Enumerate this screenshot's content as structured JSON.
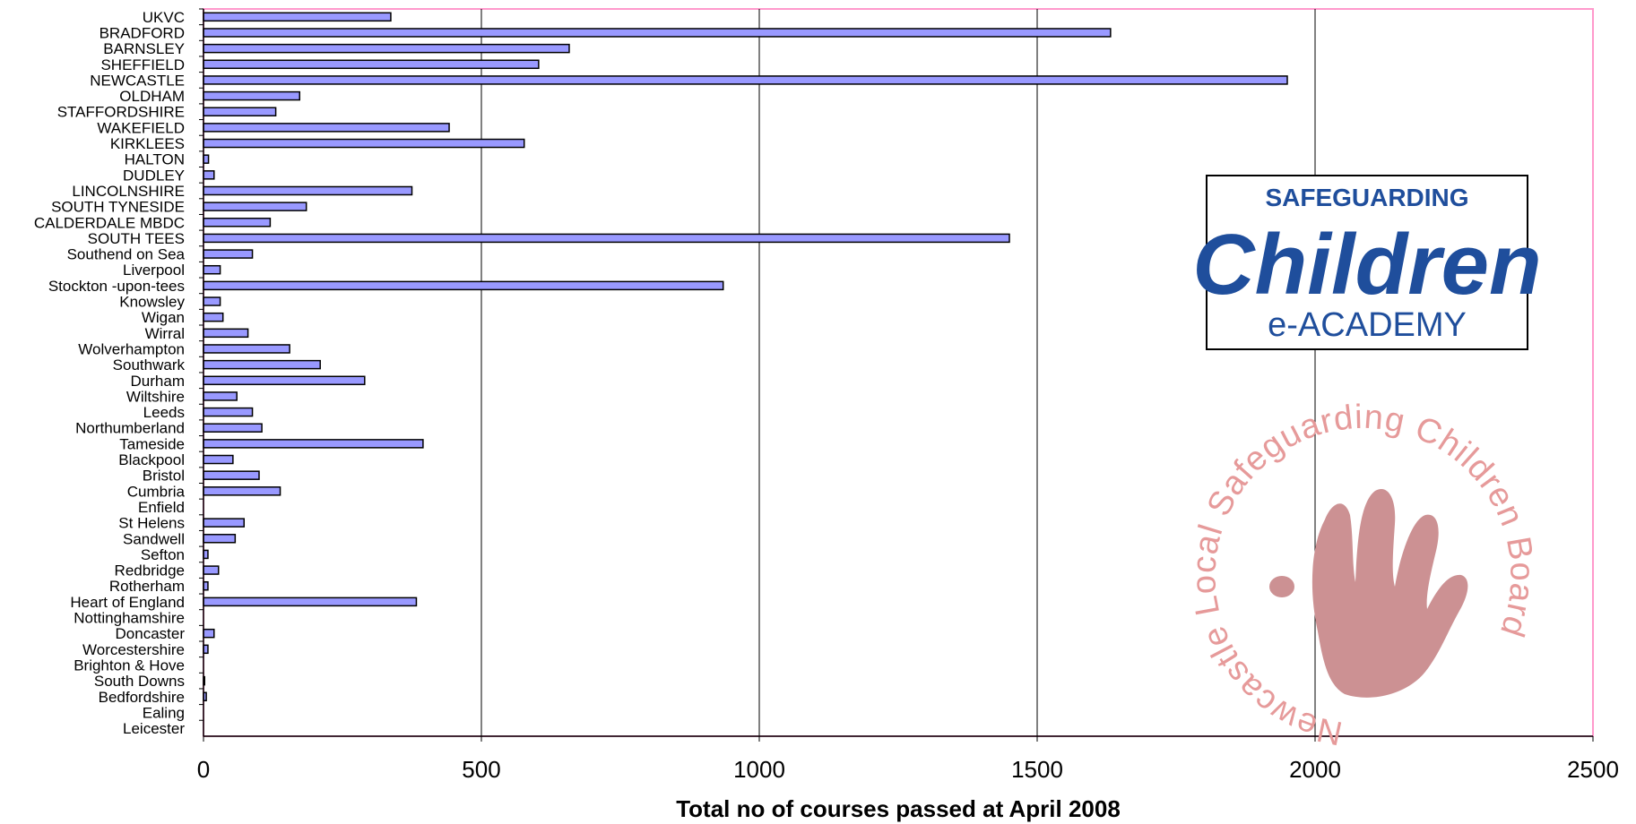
{
  "chart_data": {
    "type": "bar",
    "orientation": "horizontal",
    "categories": [
      "UKVC",
      "BRADFORD",
      "BARNSLEY",
      "SHEFFIELD",
      "NEWCASTLE",
      "OLDHAM",
      "STAFFORDSHIRE",
      "WAKEFIELD",
      "KIRKLEES",
      "HALTON",
      "DUDLEY",
      "LINCOLNSHIRE",
      "SOUTH TYNESIDE",
      "CALDERDALE MBDC",
      "SOUTH TEES",
      "Southend on Sea",
      "Liverpool",
      "Stockton -upon-tees",
      "Knowsley",
      "Wigan",
      "Wirral",
      "Wolverhampton",
      "Southwark",
      "Durham",
      "Wiltshire",
      "Leeds",
      "Northumberland",
      "Tameside",
      "Blackpool",
      "Bristol",
      "Cumbria",
      "Enfield",
      "St Helens",
      "Sandwell",
      "Sefton",
      "Redbridge",
      "Rotherham",
      "Heart of England",
      "Nottinghamshire",
      "Doncaster",
      "Worcestershire",
      "Brighton & Hove",
      "South Downs",
      "Bedfordshire",
      "Ealing",
      "Leicester"
    ],
    "values": [
      337,
      1632,
      658,
      603,
      1950,
      173,
      130,
      442,
      577,
      9,
      19,
      375,
      185,
      120,
      1450,
      88,
      30,
      935,
      30,
      35,
      80,
      155,
      210,
      290,
      60,
      88,
      105,
      395,
      53,
      100,
      138,
      0,
      73,
      57,
      8,
      27,
      8,
      383,
      0,
      19,
      8,
      0,
      2,
      5,
      0,
      0
    ],
    "xlabel": "Total no of courses passed at April 2008",
    "xlim": [
      0,
      2500
    ],
    "xticks": [
      0,
      500,
      1000,
      1500,
      2000,
      2500
    ],
    "grid": "vertical",
    "colors": {
      "bar": "#9999ff",
      "bar_edge": "#000000",
      "border": "#ff99cc",
      "grid": "#000000"
    }
  },
  "logo": {
    "line1": "SAFEGUARDING",
    "line2": "Children",
    "line3": "e-ACADEMY",
    "color": "#1f4e9c"
  },
  "stamp": {
    "text": "Newcastle Local Safeguarding Children Board",
    "color": "#d38c8c",
    "icon": "hand-icon"
  }
}
